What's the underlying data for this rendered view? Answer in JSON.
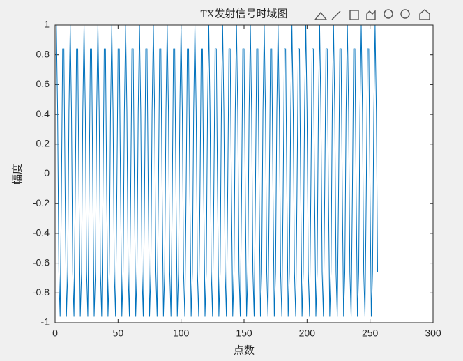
{
  "chart_data": {
    "type": "line",
    "title": "TX发射信号时域图",
    "xlabel": "点数",
    "ylabel": "幅度",
    "color": "#0072bd",
    "xlim": [
      0,
      300
    ],
    "xticks": [
      0,
      50,
      100,
      150,
      200,
      250,
      300
    ],
    "ylim": [
      -1,
      1
    ],
    "yticks": [
      -1,
      -0.8,
      -0.6,
      -0.4,
      -0.2,
      0,
      0.2,
      0.4,
      0.6,
      0.8,
      1
    ],
    "x": [
      1,
      2,
      3,
      4,
      5,
      6,
      7,
      8,
      9,
      10,
      11,
      12,
      13,
      14,
      15,
      16,
      17,
      18,
      19,
      20,
      21,
      22,
      23,
      24,
      25,
      26,
      27,
      28,
      29,
      30,
      31,
      32,
      33,
      34,
      35,
      36,
      37,
      38,
      39,
      40,
      41,
      42,
      43,
      44,
      45,
      46,
      47,
      48,
      49,
      50,
      51,
      52,
      53,
      54,
      55,
      56,
      57,
      58,
      59,
      60,
      61,
      62,
      63,
      64,
      65,
      66,
      67,
      68,
      69,
      70,
      71,
      72,
      73,
      74,
      75,
      76,
      77,
      78,
      79,
      80,
      81,
      82,
      83,
      84,
      85,
      86,
      87,
      88,
      89,
      90,
      91,
      92,
      93,
      94,
      95,
      96,
      97,
      98,
      99,
      100,
      101,
      102,
      103,
      104,
      105,
      106,
      107,
      108,
      109,
      110,
      111,
      112,
      113,
      114,
      115,
      116,
      117,
      118,
      119,
      120,
      121,
      122,
      123,
      124,
      125,
      126,
      127,
      128,
      129,
      130,
      131,
      132,
      133,
      134,
      135,
      136,
      137,
      138,
      139,
      140,
      141,
      142,
      143,
      144,
      145,
      146,
      147,
      148,
      149,
      150,
      151,
      152,
      153,
      154,
      155,
      156,
      157,
      158,
      159,
      160,
      161,
      162,
      163,
      164,
      165,
      166,
      167,
      168,
      169,
      170,
      171,
      172,
      173,
      174,
      175,
      176,
      177,
      178,
      179,
      180,
      181,
      182,
      183,
      184,
      185,
      186,
      187,
      188,
      189,
      190,
      191,
      192,
      193,
      194,
      195,
      196,
      197,
      198,
      199,
      200,
      201,
      202,
      203,
      204,
      205,
      206,
      207,
      208,
      209,
      210,
      211,
      212,
      213,
      214,
      215,
      216,
      217,
      218,
      219,
      220,
      221,
      222,
      223,
      224,
      225,
      226,
      227,
      228,
      229,
      230,
      231,
      232,
      233,
      234,
      235,
      236,
      237,
      238,
      239,
      240,
      241,
      242,
      243,
      244,
      245,
      246,
      247,
      248,
      249,
      250,
      251,
      252,
      253,
      254,
      255,
      256
    ],
    "values": [
      1,
      0.42,
      -0.66,
      -0.96,
      -0.14,
      0.84,
      0.84,
      -0.14,
      -0.96,
      -0.66,
      0.42,
      1,
      0.42,
      -0.66,
      -0.96,
      -0.14,
      0.84,
      0.84,
      -0.14,
      -0.96,
      -0.66,
      0.42,
      1,
      0.42,
      -0.66,
      -0.96,
      -0.14,
      0.84,
      0.84,
      -0.14,
      -0.96,
      -0.66,
      0.42,
      1,
      0.42,
      -0.66,
      -0.96,
      -0.14,
      0.84,
      0.84,
      -0.14,
      -0.96,
      -0.66,
      0.42,
      1,
      0.42,
      -0.66,
      -0.96,
      -0.14,
      0.84,
      0.84,
      -0.14,
      -0.96,
      -0.66,
      0.42,
      1,
      0.42,
      -0.66,
      -0.96,
      -0.14,
      0.84,
      0.84,
      -0.14,
      -0.96,
      -0.66,
      0.42,
      1,
      0.42,
      -0.66,
      -0.96,
      -0.14,
      0.84,
      0.84,
      -0.14,
      -0.96,
      -0.66,
      0.42,
      1,
      0.42,
      -0.66,
      -0.96,
      -0.14,
      0.84,
      0.84,
      -0.14,
      -0.96,
      -0.66,
      0.42,
      1,
      0.42,
      -0.66,
      -0.96,
      -0.14,
      0.84,
      0.84,
      -0.14,
      -0.96,
      -0.66,
      0.42,
      1,
      0.42,
      -0.66,
      -0.96,
      -0.14,
      0.84,
      0.84,
      -0.14,
      -0.96,
      -0.66,
      0.42,
      1,
      0.42,
      -0.66,
      -0.96,
      -0.14,
      0.84,
      0.84,
      -0.14,
      -0.96,
      -0.66,
      0.42,
      1,
      0.42,
      -0.66,
      -0.96,
      -0.14,
      0.84,
      0.84,
      -0.14,
      -0.96,
      -0.66,
      0.42,
      1,
      0.42,
      -0.66,
      -0.96,
      -0.14,
      0.84,
      0.84,
      -0.14,
      -0.96,
      -0.66,
      0.42,
      1,
      0.42,
      -0.66,
      -0.96,
      -0.14,
      0.84,
      0.84,
      -0.14,
      -0.96,
      -0.66,
      0.42,
      1,
      0.42,
      -0.66,
      -0.96,
      -0.14,
      0.84,
      0.84,
      -0.14,
      -0.96,
      -0.66,
      0.42,
      1,
      0.42,
      -0.66,
      -0.96,
      -0.14,
      0.84,
      0.84,
      -0.14,
      -0.96,
      -0.66,
      0.42,
      1,
      0.42,
      -0.66,
      -0.96,
      -0.14,
      0.84,
      0.84,
      -0.14,
      -0.96,
      -0.66,
      0.42,
      1,
      0.42,
      -0.66,
      -0.96,
      -0.14,
      0.84,
      0.84,
      -0.14,
      -0.96,
      -0.66,
      0.42,
      1,
      0.42,
      -0.66,
      -0.96,
      -0.14,
      0.84,
      0.84,
      -0.14,
      -0.96,
      -0.66,
      0.42,
      1,
      0.42,
      -0.66,
      -0.96,
      -0.14,
      0.84,
      0.84,
      -0.14,
      -0.96,
      -0.66,
      0.42,
      1,
      0.42,
      -0.66,
      -0.96,
      -0.14,
      0.84,
      0.84,
      -0.14,
      -0.96,
      -0.66,
      0.42,
      1,
      0.42,
      -0.66,
      -0.96,
      -0.14,
      0.84,
      0.84,
      -0.14,
      -0.96,
      -0.66,
      0.42,
      1,
      0.42,
      -0.66,
      -0.96,
      -0.14,
      0.84,
      0.84,
      -0.14,
      -0.96,
      -0.66,
      0.42,
      1,
      0.42,
      -0.66
    ]
  }
}
